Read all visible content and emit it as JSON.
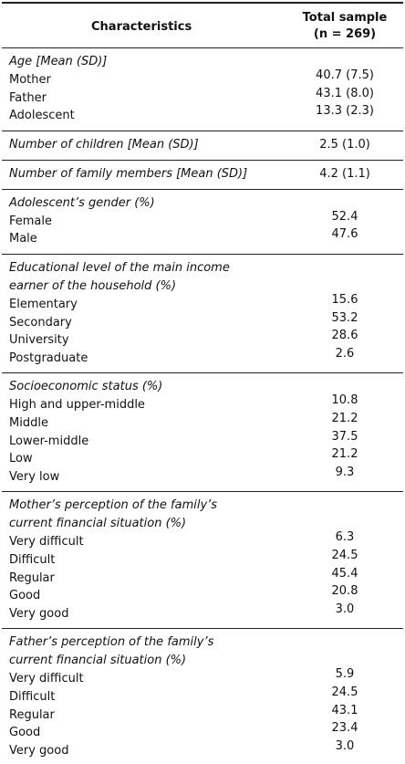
{
  "header": {
    "characteristics": "Characteristics",
    "total_sample": "Total sample",
    "n": "(n = 269)"
  },
  "sections": [
    {
      "title": [
        "Age [Mean (SD)]"
      ],
      "rows": [
        [
          "Mother",
          "40.7 (7.5)"
        ],
        [
          "Father",
          "43.1 (8.0)"
        ],
        [
          "Adolescent",
          "13.3 (2.3)"
        ]
      ]
    },
    {
      "title": [
        "Number of children [Mean (SD)]"
      ],
      "value": "2.5 (1.0)"
    },
    {
      "title": [
        "Number of family members [Mean (SD)]"
      ],
      "value": "4.2 (1.1)"
    },
    {
      "title": [
        "Adolescent’s gender (%)"
      ],
      "rows": [
        [
          "Female",
          "52.4"
        ],
        [
          "Male",
          "47.6"
        ]
      ]
    },
    {
      "title": [
        "Educational level of the main income",
        "earner of the household (%)"
      ],
      "rows": [
        [
          "Elementary",
          "15.6"
        ],
        [
          "Secondary",
          "53.2"
        ],
        [
          "University",
          "28.6"
        ],
        [
          "Postgraduate",
          "2.6"
        ]
      ]
    },
    {
      "title": [
        "Socioeconomic status (%)"
      ],
      "rows": [
        [
          "High and upper-middle",
          "10.8"
        ],
        [
          "Middle",
          "21.2"
        ],
        [
          "Lower-middle",
          "37.5"
        ],
        [
          "Low",
          "21.2"
        ],
        [
          "Very low",
          "9.3"
        ]
      ]
    },
    {
      "title": [
        "Mother’s perception of the family’s",
        "current financial situation (%)"
      ],
      "rows": [
        [
          "Very difficult",
          "6.3"
        ],
        [
          "Difficult",
          "24.5"
        ],
        [
          "Regular",
          "45.4"
        ],
        [
          "Good",
          "20.8"
        ],
        [
          "Very good",
          "3.0"
        ]
      ]
    },
    {
      "title": [
        "Father’s perception of the family’s",
        "current financial situation (%)"
      ],
      "rows": [
        [
          "Very difficult",
          "5.9"
        ],
        [
          "Difficult",
          "24.5"
        ],
        [
          "Regular",
          "43.1"
        ],
        [
          "Good",
          "23.4"
        ],
        [
          "Very good",
          "3.0"
        ]
      ]
    }
  ]
}
